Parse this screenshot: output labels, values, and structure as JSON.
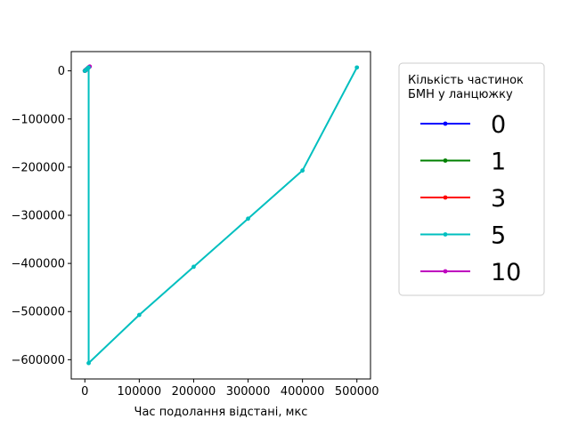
{
  "chart_data": {
    "type": "line",
    "title": "",
    "xlabel": "Час подолання відстані, мкс",
    "ylabel": "",
    "xlim": [
      -25000,
      525000
    ],
    "ylim": [
      -640000,
      40000
    ],
    "x_ticks": [
      0,
      100000,
      200000,
      300000,
      400000,
      500000
    ],
    "x_tick_labels": [
      "0",
      "100000",
      "200000",
      "300000",
      "400000",
      "500000"
    ],
    "y_ticks": [
      0,
      -100000,
      -200000,
      -300000,
      -400000,
      -500000,
      -600000
    ],
    "y_tick_labels": [
      "0",
      "−100000",
      "−200000",
      "−300000",
      "−400000",
      "−500000",
      "−600000"
    ],
    "grid": false,
    "legend": {
      "title_lines": [
        "Кількість частинок",
        "БМН у ланцюжку"
      ],
      "placement": "outside-right",
      "entries": [
        "0",
        "1",
        "3",
        "5",
        "10"
      ]
    },
    "series": [
      {
        "name": "0",
        "color": "#0000ff",
        "x": [
          0,
          1000,
          2500,
          4000,
          6000
        ],
        "y": [
          0,
          1000,
          2500,
          4000,
          6000
        ]
      },
      {
        "name": "1",
        "color": "#008000",
        "x": [
          0,
          1200,
          3000,
          5000,
          7000
        ],
        "y": [
          0,
          1200,
          3000,
          5000,
          7000
        ]
      },
      {
        "name": "3",
        "color": "#ff0000",
        "x": [
          0,
          1500,
          3500,
          5500,
          7500
        ],
        "y": [
          0,
          1500,
          3500,
          5500,
          7500
        ]
      },
      {
        "name": "5",
        "color": "#00bfbf",
        "x": [
          0,
          3000,
          6000,
          7000,
          7000,
          100000,
          200000,
          300000,
          400000,
          500000
        ],
        "y": [
          0,
          3000,
          6000,
          7000,
          -607000,
          -507000,
          -407000,
          -307000,
          -207000,
          7000
        ]
      },
      {
        "name": "10",
        "color": "#bf00bf",
        "x": [
          0,
          1500,
          3000,
          4500,
          6000,
          7500,
          9000
        ],
        "y": [
          0,
          1500,
          3000,
          4500,
          6000,
          7500,
          9000
        ]
      }
    ]
  }
}
